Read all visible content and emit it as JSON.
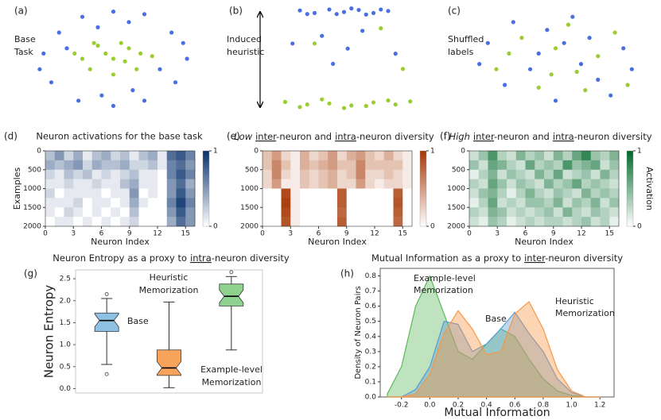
{
  "chart_data": [
    {
      "type": "scatter",
      "panel_label": "(a)",
      "label_lines": [
        "Base",
        "Task"
      ],
      "xlim": [
        -1,
        1
      ],
      "ylim": [
        -1,
        1
      ],
      "series": [
        {
          "color": "#4a6fe3",
          "x": [
            -0.9,
            -0.7,
            -0.4,
            0,
            0.4,
            0.75,
            0.95,
            0.8,
            0.4,
            0,
            -0.45,
            -0.8,
            -0.6,
            0.6,
            -0.2,
            0.25,
            -0.95,
            0.9,
            -0.15,
            0.2
          ],
          "y": [
            0.1,
            0.5,
            0.8,
            0.9,
            0.85,
            0.5,
            0,
            -0.45,
            -0.8,
            -0.9,
            -0.8,
            -0.45,
            0.2,
            -0.2,
            0.6,
            -0.6,
            -0.2,
            0.3,
            -0.7,
            0.7
          ]
        },
        {
          "color": "#9acd32",
          "x": [
            -0.4,
            -0.2,
            0.1,
            0.35,
            0.3,
            0,
            -0.3,
            0,
            0.15,
            -0.1,
            0.5,
            -0.5,
            0.2,
            -0.25
          ],
          "y": [
            0,
            0.25,
            0.3,
            0.1,
            -0.2,
            -0.3,
            -0.2,
            0,
            -0.05,
            0.1,
            0.05,
            0.1,
            0.2,
            0.3
          ]
        }
      ]
    },
    {
      "type": "scatter",
      "panel_label": "(b)",
      "label_lines": [
        "Induced",
        "heuristic"
      ],
      "xlim": [
        -1,
        1
      ],
      "ylim": [
        -1,
        1
      ],
      "series": [
        {
          "color": "#4a6fe3",
          "x": [
            -0.6,
            -0.4,
            -0.2,
            0,
            0.2,
            0.4,
            0.6,
            -0.5,
            -0.1,
            0.1,
            0.3,
            0.5,
            -0.3,
            0.05,
            -0.15,
            0.25,
            -0.7,
            0.7
          ],
          "y": [
            0.95,
            0.9,
            0.97,
            0.92,
            0.96,
            0.9,
            0.94,
            0.88,
            0.88,
            0.99,
            0.87,
            0.97,
            0.45,
            0.2,
            -0.1,
            0.55,
            0.3,
            0.1
          ]
        },
        {
          "color": "#9acd32",
          "x": [
            -0.8,
            -0.5,
            -0.2,
            0.1,
            0.4,
            0.7,
            0.9,
            -0.6,
            -0.3,
            0,
            0.3,
            0.6,
            -0.4,
            0.5,
            0.8
          ],
          "y": [
            -0.85,
            -0.9,
            -0.88,
            -0.92,
            -0.86,
            -0.9,
            -0.84,
            -0.95,
            -0.8,
            -0.97,
            -0.93,
            -0.82,
            0.3,
            0.6,
            -0.2
          ]
        }
      ]
    },
    {
      "type": "scatter",
      "panel_label": "(c)",
      "label_lines": [
        "Shuffled",
        "labels"
      ],
      "xlim": [
        -1,
        1
      ],
      "ylim": [
        -1,
        1
      ],
      "series": [
        {
          "color": "#4a6fe3",
          "x": [
            -0.8,
            -0.5,
            -0.2,
            0.2,
            0.5,
            0.8,
            -0.6,
            0,
            0.4,
            -0.3,
            0.65,
            -0.9,
            0.9,
            0.1,
            -0.1,
            0.3
          ],
          "y": [
            0.3,
            0.7,
            0.1,
            0.8,
            -0.4,
            0.2,
            -0.5,
            -0.8,
            0.4,
            -0.2,
            -0.7,
            -0.1,
            -0.2,
            0.3,
            0.55,
            -0.1
          ]
        },
        {
          "color": "#9acd32",
          "x": [
            -0.7,
            -0.4,
            0,
            0.35,
            0.7,
            -0.2,
            0.15,
            0.5,
            -0.55,
            0.85,
            -0.05,
            0.25
          ],
          "y": [
            -0.2,
            0.4,
            0.2,
            -0.6,
            0.5,
            -0.55,
            0.65,
            0.05,
            0.1,
            -0.5,
            -0.3,
            -0.25
          ]
        }
      ]
    },
    {
      "type": "heatmap",
      "panel_label": "(d)",
      "title": "Neuron activations for the base task",
      "y_label": "Examples",
      "x_label": "Neuron Index",
      "color": "#08306b",
      "xlim": [
        0,
        16
      ],
      "ylim": [
        0,
        2000
      ],
      "xticks": [
        0,
        3,
        6,
        9,
        12,
        15
      ],
      "yticks": [
        0,
        500,
        1000,
        1500,
        2000
      ],
      "clim": [
        0,
        1
      ],
      "cticks": [
        0,
        1
      ],
      "z": [
        [
          0.3,
          0.5,
          0.2,
          0.4,
          0.1,
          0.3,
          0.4,
          0.2,
          0.3,
          0.1,
          0.3,
          0.4,
          0.1,
          0.7,
          0.8,
          0.6
        ],
        [
          0.4,
          0.3,
          0.4,
          0.5,
          0.2,
          0.4,
          0.3,
          0.3,
          0.4,
          0.2,
          0.2,
          0.3,
          0.1,
          0.6,
          0.7,
          0.5
        ],
        [
          0.2,
          0.1,
          0.3,
          0.2,
          0.3,
          0.1,
          0.2,
          0.1,
          0.2,
          0.3,
          0.1,
          0.1,
          0,
          0.6,
          0.8,
          0.6
        ],
        [
          0.1,
          0.1,
          0.2,
          0.1,
          0.1,
          0.2,
          0.1,
          0.1,
          0.3,
          0.4,
          0.1,
          0.1,
          0,
          0.5,
          0.7,
          0.4
        ],
        [
          0.2,
          0,
          0.1,
          0.1,
          0.1,
          0.1,
          0,
          0.1,
          0.1,
          0.5,
          0,
          0.1,
          0,
          0.5,
          0.8,
          0.5
        ],
        [
          0.1,
          0.1,
          0.1,
          0.2,
          0,
          0.1,
          0.1,
          0,
          0.1,
          0.4,
          0.1,
          0,
          0,
          0.6,
          0.9,
          0.6
        ],
        [
          0.1,
          0,
          0.2,
          0.1,
          0,
          0.1,
          0,
          0.1,
          0,
          0.3,
          0,
          0,
          0,
          0.5,
          0.8,
          0.5
        ],
        [
          0,
          0.1,
          0.1,
          0,
          0.1,
          0,
          0.1,
          0,
          0.1,
          0.2,
          0,
          0,
          0,
          0.4,
          0.7,
          0.5
        ]
      ]
    },
    {
      "type": "heatmap",
      "panel_label": "(e)",
      "title_parts": [
        "Low",
        "inter",
        "-neuron and",
        "intra",
        "-neuron diversity"
      ],
      "x_label": "Neuron Index",
      "color": "#a63603",
      "xlim": [
        0,
        16
      ],
      "ylim": [
        0,
        2000
      ],
      "xticks": [
        0,
        3,
        6,
        9,
        12,
        15
      ],
      "yticks": [
        0,
        500,
        1000,
        1500,
        2000
      ],
      "clim": [
        0,
        1
      ],
      "cticks": [
        0,
        1
      ],
      "z": [
        [
          0.3,
          0.5,
          0.2,
          0.1,
          0.4,
          0.2,
          0.3,
          0.5,
          0.2,
          0.4,
          0.5,
          0.3,
          0.2,
          0.4,
          0.2,
          0.1
        ],
        [
          0.3,
          0.6,
          0.3,
          0.1,
          0.4,
          0.3,
          0.4,
          0.5,
          0.3,
          0.3,
          0.6,
          0.3,
          0.3,
          0.3,
          0.3,
          0.1
        ],
        [
          0.2,
          0.6,
          0.2,
          0.1,
          0.3,
          0.2,
          0.3,
          0.4,
          0.2,
          0.3,
          0.6,
          0.2,
          0.2,
          0.3,
          0.2,
          0.1
        ],
        [
          0.2,
          0.5,
          0.1,
          0.1,
          0.3,
          0.2,
          0.3,
          0.4,
          0.2,
          0.2,
          0.5,
          0.2,
          0.1,
          0.2,
          0.2,
          0.1
        ],
        [
          0,
          0,
          0.9,
          0.1,
          0,
          0,
          0,
          0,
          0.8,
          0,
          0,
          0,
          0,
          0,
          0.8,
          0
        ],
        [
          0,
          0,
          0.95,
          0.1,
          0,
          0,
          0,
          0,
          0.8,
          0,
          0,
          0,
          0,
          0,
          0.85,
          0
        ],
        [
          0,
          0,
          0.9,
          0.1,
          0,
          0,
          0,
          0,
          0.75,
          0,
          0,
          0,
          0,
          0,
          0.8,
          0
        ],
        [
          0,
          0,
          0.85,
          0.1,
          0,
          0,
          0,
          0,
          0.8,
          0,
          0,
          0,
          0,
          0,
          0.75,
          0
        ]
      ]
    },
    {
      "type": "heatmap",
      "panel_label": "(f)",
      "title_parts": [
        "High",
        "inter",
        "-neuron and",
        "intra",
        "-neuron diversity"
      ],
      "x_label": "Neuron Index",
      "colorbar_label": "Activation",
      "color": "#00692a",
      "xlim": [
        0,
        16
      ],
      "ylim": [
        0,
        2000
      ],
      "xticks": [
        0,
        3,
        6,
        9,
        12,
        15
      ],
      "yticks": [
        0,
        500,
        1000,
        1500,
        2000
      ],
      "clim": [
        0,
        1
      ],
      "cticks": [
        0,
        1
      ],
      "z": [
        [
          0.2,
          0.4,
          0.7,
          0.3,
          0.2,
          0.5,
          0.3,
          0.4,
          0.2,
          0.5,
          0.3,
          0.6,
          0.8,
          0.4,
          0.3,
          0.5
        ],
        [
          0.4,
          0.2,
          0.6,
          0.5,
          0.3,
          0.2,
          0.6,
          0.3,
          0.4,
          0.3,
          0.7,
          0.4,
          0.5,
          0.6,
          0.2,
          0.4
        ],
        [
          0.1,
          0.3,
          0.5,
          0.2,
          0.4,
          0.3,
          0.2,
          0.5,
          0.3,
          0.6,
          0.2,
          0.3,
          0.4,
          0.2,
          0.5,
          0.3
        ],
        [
          0.3,
          0.2,
          0.6,
          0.4,
          0.2,
          0.4,
          0.3,
          0.2,
          0.5,
          0.3,
          0.4,
          0.6,
          0.3,
          0.4,
          0.3,
          0.2
        ],
        [
          0.2,
          0.4,
          0.5,
          0.3,
          0.1,
          0.3,
          0.5,
          0.3,
          0.2,
          0.4,
          0.3,
          0.2,
          0.5,
          0.3,
          0.4,
          0.3
        ],
        [
          0.1,
          0.3,
          0.6,
          0.2,
          0.3,
          0.2,
          0.4,
          0.4,
          0.3,
          0.5,
          0.2,
          0.4,
          0.3,
          0.5,
          0.2,
          0.4
        ],
        [
          0.3,
          0.2,
          0.5,
          0.4,
          0.2,
          0.3,
          0.2,
          0.3,
          0.4,
          0.2,
          0.5,
          0.3,
          0.2,
          0.4,
          0.3,
          0.2
        ],
        [
          0.2,
          0.1,
          0.4,
          0.3,
          0.1,
          0.2,
          0.3,
          0.2,
          0.3,
          0.3,
          0.2,
          0.3,
          0.4,
          0.2,
          0.3,
          0.1
        ]
      ]
    },
    {
      "type": "box",
      "panel_label": "(g)",
      "title_parts": [
        "Neuron Entropy",
        "as a proxy to",
        "intra",
        "-neuron diversity"
      ],
      "y_label": "Neuron Entropy",
      "ylim": [
        -0.1,
        2.7
      ],
      "yticks": [
        {
          "value": 0,
          "label": "0.0"
        },
        0.5,
        {
          "value": 1,
          "label": "1.0"
        },
        1.5,
        {
          "value": 2,
          "label": "2.0"
        },
        2.5
      ],
      "boxes": [
        {
          "label_lines": [
            "Base"
          ],
          "color": "#8fc1e3",
          "min": 0.55,
          "q1": 1.3,
          "median": 1.55,
          "q3": 1.72,
          "max": 2.05,
          "outliers": [
            0.33,
            2.15
          ]
        },
        {
          "label_lines": [
            "Heuristic",
            "Memorization"
          ],
          "color": "#f7a35c",
          "min": 0.02,
          "q1": 0.3,
          "median": 0.47,
          "q3": 0.88,
          "max": 1.97,
          "outliers": []
        },
        {
          "label_lines": [
            "Example-level",
            "Memorization"
          ],
          "color": "#8fd18f",
          "min": 0.88,
          "q1": 1.88,
          "median": 2.1,
          "q3": 2.38,
          "max": 2.55,
          "outliers": [
            2.65
          ]
        }
      ]
    },
    {
      "type": "area",
      "panel_label": "(h)",
      "title_parts": [
        "Mutual Information",
        "as a proxy to",
        "inter",
        "-neuron diversity"
      ],
      "y_label": "Density of Neuron Pairs",
      "x_label": "Mutual Information",
      "xlim": [
        -0.35,
        1.3
      ],
      "ylim": [
        0,
        0.85
      ],
      "xticks": [
        -0.2,
        {
          "value": 0,
          "label": "0.0"
        },
        0.2,
        0.4,
        0.6,
        0.8,
        {
          "value": 1,
          "label": "1.0"
        },
        1.2
      ],
      "yticks": [
        {
          "value": 0,
          "label": "0.0"
        },
        0.1,
        0.2,
        0.3,
        0.4,
        0.5,
        0.6,
        0.7,
        0.8
      ],
      "x": [
        -0.3,
        -0.2,
        -0.1,
        0,
        0.1,
        0.2,
        0.3,
        0.4,
        0.5,
        0.6,
        0.7,
        0.8,
        0.9,
        1,
        1.1,
        1.2
      ],
      "series": [
        {
          "color": "#5cb85c",
          "label_lines": [
            "Example-level",
            "Memorization"
          ],
          "values": [
            0.02,
            0.2,
            0.6,
            0.8,
            0.55,
            0.3,
            0.25,
            0.35,
            0.45,
            0.4,
            0.25,
            0.12,
            0.04,
            0.01,
            0,
            0
          ]
        },
        {
          "color": "#5b9bd5",
          "label_lines": [
            "Base"
          ],
          "values": [
            0,
            0,
            0.05,
            0.2,
            0.5,
            0.48,
            0.3,
            0.35,
            0.45,
            0.56,
            0.42,
            0.3,
            0.12,
            0.03,
            0,
            0
          ]
        },
        {
          "color": "#f79646",
          "label_lines": [
            "Heuristic",
            "Memorization"
          ],
          "values": [
            0,
            0,
            0.02,
            0.15,
            0.42,
            0.57,
            0.45,
            0.28,
            0.3,
            0.55,
            0.63,
            0.45,
            0.18,
            0.04,
            0,
            0
          ]
        }
      ]
    }
  ]
}
